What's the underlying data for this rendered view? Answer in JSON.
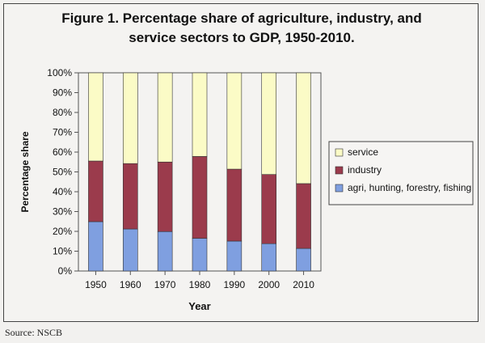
{
  "chart_data": {
    "type": "bar",
    "stacked": true,
    "title": "Figure 1. Percentage share of agriculture, industry, and\nservice sectors to GDP, 1950-2010.",
    "xlabel": "Year",
    "ylabel": "Percentage share",
    "categories": [
      "1950",
      "1960",
      "1970",
      "1980",
      "1990",
      "2000",
      "2010"
    ],
    "y_ticks": [
      "0%",
      "10%",
      "20%",
      "30%",
      "40%",
      "50%",
      "60%",
      "70%",
      "80%",
      "90%",
      "100%"
    ],
    "ylim": [
      0,
      100
    ],
    "grid": false,
    "legend_position": "right",
    "series": [
      {
        "name": "agri, hunting, forestry, fishing",
        "color": "#7f9fe0",
        "values": [
          24.9,
          21.2,
          19.9,
          16.5,
          15.1,
          13.8,
          11.4
        ]
      },
      {
        "name": "industry",
        "color": "#9b3b4c",
        "values": [
          30.6,
          33.0,
          35.1,
          41.3,
          36.3,
          34.9,
          32.7
        ]
      },
      {
        "name": "service",
        "color": "#fbfbc6",
        "values": [
          44.5,
          45.8,
          45.0,
          42.2,
          48.6,
          51.3,
          55.9
        ]
      }
    ]
  },
  "source": "Source: NSCB"
}
